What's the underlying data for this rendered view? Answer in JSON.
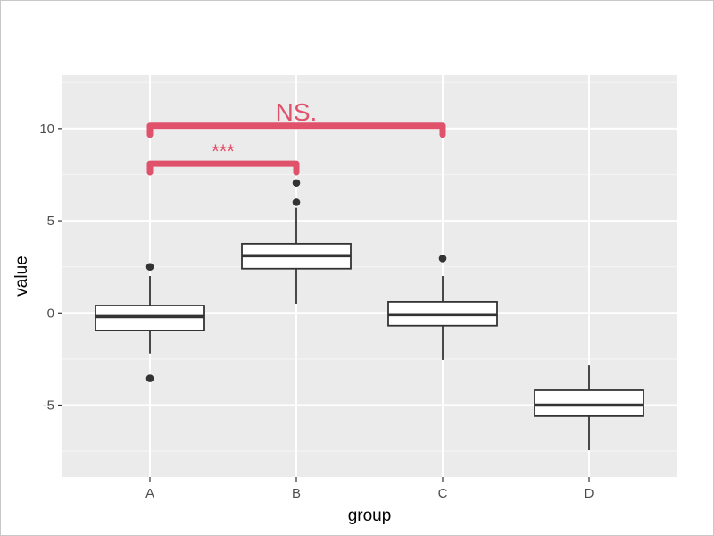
{
  "chart_data": {
    "type": "boxplot",
    "xlabel": "group",
    "ylabel": "value",
    "categories": [
      "A",
      "B",
      "C",
      "D"
    ],
    "ylim": [
      -8.9,
      12.9
    ],
    "yticks": [
      -5,
      0,
      5,
      10
    ],
    "ytick_labels": [
      "-5",
      "0",
      "5",
      "10"
    ],
    "boxes": [
      {
        "group": "A",
        "q1": -0.95,
        "median": -0.2,
        "q3": 0.4,
        "whisker_low": -2.2,
        "whisker_high": 2.0,
        "outliers": [
          2.5,
          -3.55
        ]
      },
      {
        "group": "B",
        "q1": 2.4,
        "median": 3.1,
        "q3": 3.75,
        "whisker_low": 0.5,
        "whisker_high": 5.7,
        "outliers": [
          7.05,
          6.0
        ]
      },
      {
        "group": "C",
        "q1": -0.7,
        "median": -0.1,
        "q3": 0.6,
        "whisker_low": -2.55,
        "whisker_high": 2.0,
        "outliers": [
          2.95
        ]
      },
      {
        "group": "D",
        "q1": -5.6,
        "median": -5.0,
        "q3": -4.2,
        "whisker_low": -7.45,
        "whisker_high": -2.85,
        "outliers": []
      }
    ],
    "comparisons": [
      {
        "from": "A",
        "to": "B",
        "y": 8.1,
        "label": "***"
      },
      {
        "from": "A",
        "to": "C",
        "y": 10.15,
        "label": "NS."
      }
    ],
    "colors": {
      "panel": "#ebebeb",
      "grid_major": "#ffffff",
      "grid_minor": "#f4f4f4",
      "box_fill": "#ffffff",
      "box_line": "#333333",
      "annotation": "#e0516b"
    }
  }
}
